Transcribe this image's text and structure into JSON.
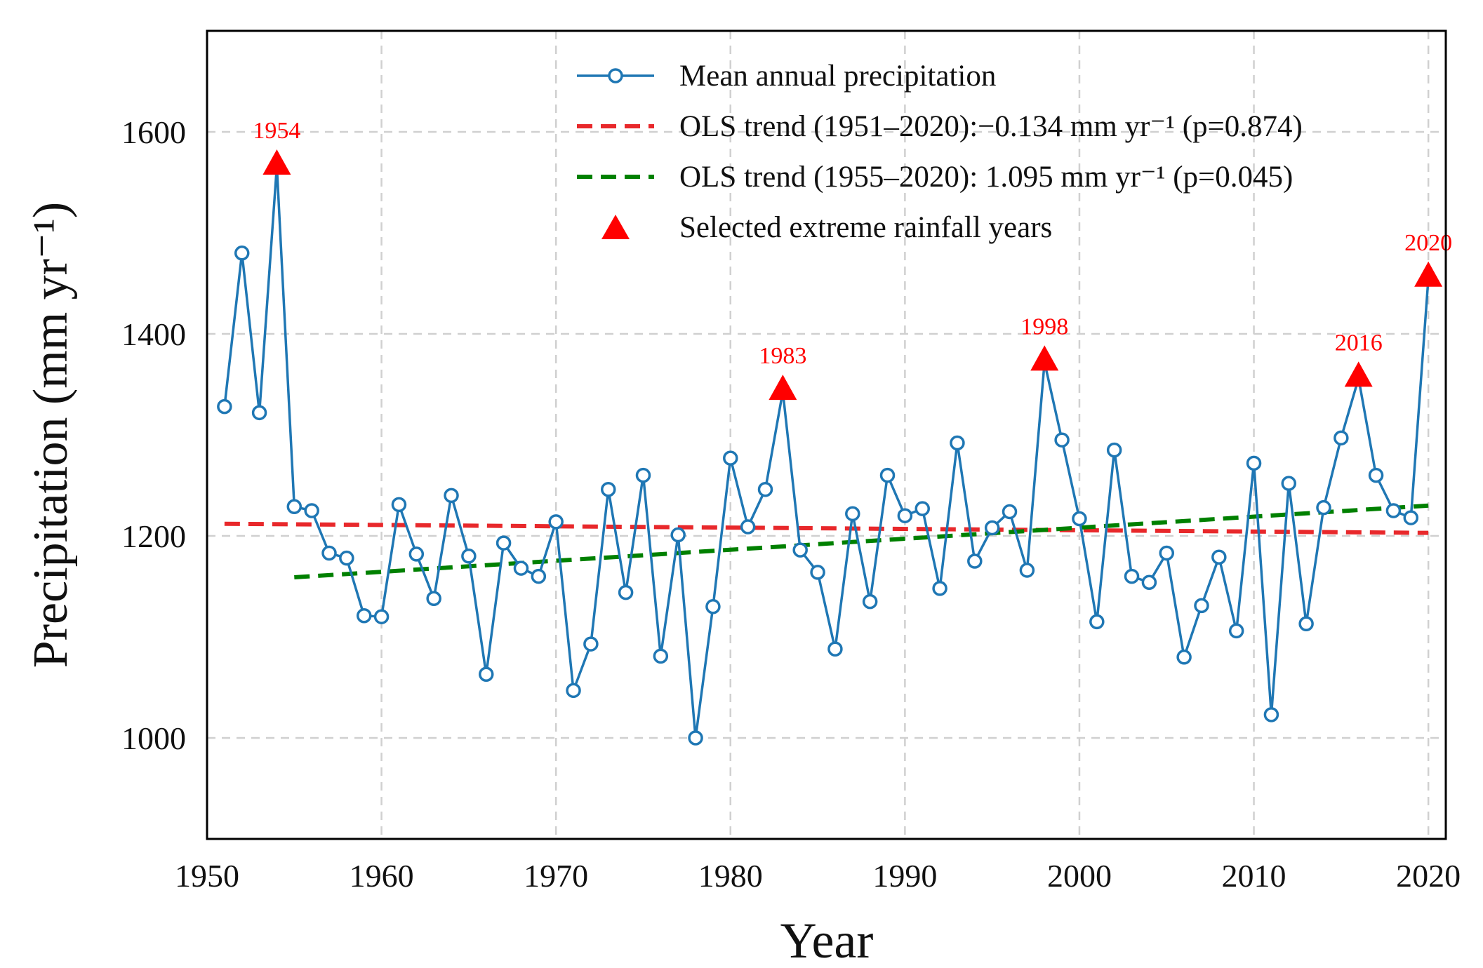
{
  "chart_data": {
    "type": "line",
    "xlabel": "Year",
    "ylabel": "Precipitation (mm yr⁻¹)",
    "xlim": [
      1950,
      2021
    ],
    "ylim": [
      900,
      1700
    ],
    "xticks": [
      1950,
      1960,
      1970,
      1980,
      1990,
      2000,
      2010,
      2020
    ],
    "yticks": [
      1000,
      1200,
      1400,
      1600
    ],
    "grid": true,
    "legend_position": "top-right",
    "series": [
      {
        "name": "Mean annual precipitation",
        "color": "#1f77b4",
        "x": [
          1951,
          1952,
          1953,
          1954,
          1955,
          1956,
          1957,
          1958,
          1959,
          1960,
          1961,
          1962,
          1963,
          1964,
          1965,
          1966,
          1967,
          1968,
          1969,
          1970,
          1971,
          1972,
          1973,
          1974,
          1975,
          1976,
          1977,
          1978,
          1979,
          1980,
          1981,
          1982,
          1983,
          1984,
          1985,
          1986,
          1987,
          1988,
          1989,
          1990,
          1991,
          1992,
          1993,
          1994,
          1995,
          1996,
          1997,
          1998,
          1999,
          2000,
          2001,
          2002,
          2003,
          2004,
          2005,
          2006,
          2007,
          2008,
          2009,
          2010,
          2011,
          2012,
          2013,
          2014,
          2015,
          2016,
          2017,
          2018,
          2019,
          2020
        ],
        "values": [
          1328,
          1480,
          1322,
          1566,
          1229,
          1225,
          1183,
          1178,
          1121,
          1120,
          1231,
          1182,
          1138,
          1240,
          1180,
          1063,
          1193,
          1168,
          1160,
          1214,
          1047,
          1093,
          1246,
          1144,
          1260,
          1081,
          1201,
          1000,
          1130,
          1277,
          1209,
          1246,
          1343,
          1186,
          1164,
          1088,
          1222,
          1135,
          1260,
          1220,
          1227,
          1148,
          1292,
          1175,
          1208,
          1224,
          1166,
          1372,
          1295,
          1217,
          1115,
          1285,
          1160,
          1154,
          1183,
          1080,
          1131,
          1179,
          1106,
          1272,
          1023,
          1252,
          1113,
          1228,
          1297,
          1356,
          1260,
          1225,
          1218,
          1455
        ]
      },
      {
        "name": "OLS trend (1951–2020):−0.134 mm yr⁻¹ (p=0.874)",
        "color": "#e8282b",
        "dashed": true,
        "x": [
          1951,
          2020
        ],
        "values": [
          1212,
          1203
        ]
      },
      {
        "name": "OLS trend (1955–2020): 1.095 mm yr⁻¹ (p=0.045)",
        "color": "#008000",
        "dashed": true,
        "x": [
          1955,
          2020
        ],
        "values": [
          1159,
          1230
        ]
      },
      {
        "name": "Selected extreme rainfall years",
        "color": "#ff0000",
        "marker": "triangle",
        "x": [
          1954,
          1983,
          1998,
          2016,
          2020
        ],
        "values": [
          1566,
          1343,
          1372,
          1356,
          1455
        ]
      }
    ],
    "annotations": [
      "1954",
      "1983",
      "1998",
      "2016",
      "2020"
    ]
  }
}
